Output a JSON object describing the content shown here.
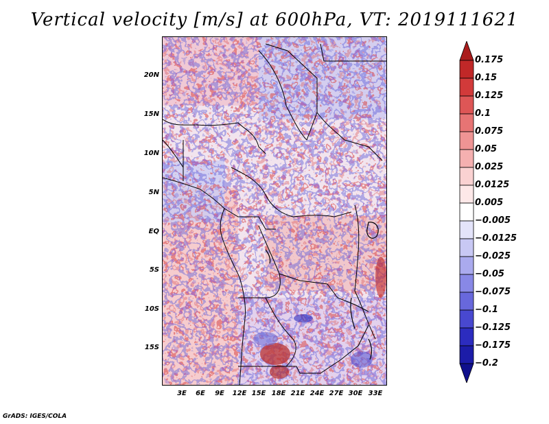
{
  "title": "Vertical velocity [m/s] at 600hPa, VT: 2019111621",
  "map": {
    "lat_labels": [
      "20N",
      "15N",
      "10N",
      "5N",
      "EQ",
      "5S",
      "10S",
      "15S"
    ],
    "lon_labels": [
      "3E",
      "6E",
      "9E",
      "12E",
      "15E",
      "18E",
      "21E",
      "24E",
      "27E",
      "30E",
      "33E"
    ]
  },
  "colorbar": {
    "labels": [
      "0.175",
      "0.15",
      "0.125",
      "0.1",
      "0.075",
      "0.05",
      "0.025",
      "0.0125",
      "0.005",
      "−0.005",
      "−0.0125",
      "−0.025",
      "−0.05",
      "−0.075",
      "−0.1",
      "−0.125",
      "−0.175",
      "−0.2"
    ],
    "colors": [
      "#aa1c1c",
      "#c02828",
      "#d23a3a",
      "#de5656",
      "#e77474",
      "#ef9494",
      "#f5b0b0",
      "#fad2d2",
      "#fde8e8",
      "#ffffff",
      "#e4e4fa",
      "#c8c8f4",
      "#aaaaee",
      "#8888e6",
      "#6868dc",
      "#4848d0",
      "#2c2cbf",
      "#1c1ca8",
      "#10108c"
    ]
  },
  "credit": "GrADS: IGES/COLA"
}
